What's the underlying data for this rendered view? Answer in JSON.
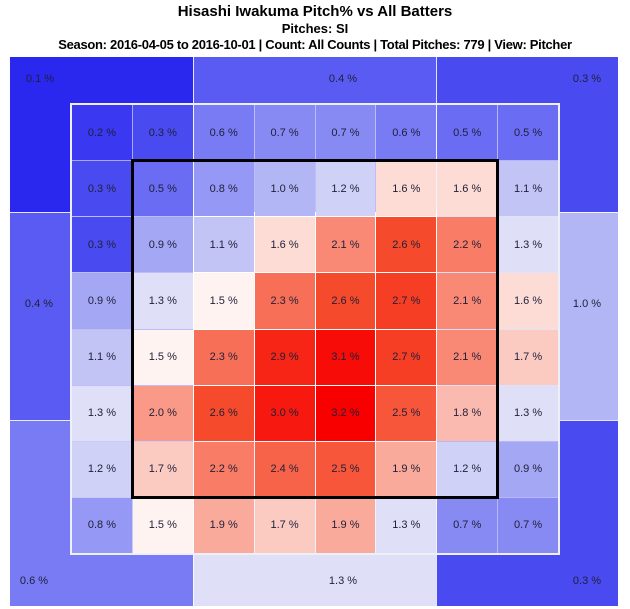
{
  "header": {
    "title": "Hisashi Iwakuma Pitch% vs All Batters",
    "subtitle": "Pitches: SI",
    "meta": "Season: 2016-04-05 to 2016-10-01 | Count: All Counts | Total Pitches: 779 | View: Pitcher"
  },
  "chart_data": {
    "type": "heatmap",
    "title": "Hisashi Iwakuma Pitch% vs All Batters",
    "player": "Hisashi Iwakuma",
    "metric": "Pitch%",
    "pitch_type": "SI",
    "season": "2016-04-05 to 2016-10-01",
    "count": "All Counts",
    "total_pitches": 779,
    "view": "Pitcher",
    "value_unit": "%",
    "label_suffix": " %",
    "inner_grid": {
      "rows": 8,
      "cols": 8,
      "values_top_to_bottom": [
        [
          0.2,
          0.3,
          0.6,
          0.7,
          0.7,
          0.6,
          0.5,
          0.5
        ],
        [
          0.3,
          0.5,
          0.8,
          1.0,
          1.2,
          1.6,
          1.6,
          1.1
        ],
        [
          0.3,
          0.9,
          1.1,
          1.6,
          2.1,
          2.6,
          2.2,
          1.3
        ],
        [
          0.9,
          1.3,
          1.5,
          2.3,
          2.6,
          2.7,
          2.1,
          1.6
        ],
        [
          1.1,
          1.5,
          2.3,
          2.9,
          3.1,
          2.7,
          2.1,
          1.7
        ],
        [
          1.3,
          2.0,
          2.6,
          3.0,
          3.2,
          2.5,
          1.8,
          1.3
        ],
        [
          1.2,
          1.7,
          2.2,
          2.4,
          2.5,
          1.9,
          1.2,
          0.9
        ],
        [
          0.8,
          1.5,
          1.9,
          1.7,
          1.9,
          1.3,
          0.7,
          0.7
        ]
      ]
    },
    "outer_zones": [
      {
        "position": "top-left",
        "value": 0.1
      },
      {
        "position": "top-center",
        "value": 0.4
      },
      {
        "position": "top-right",
        "value": 0.3
      },
      {
        "position": "middle-left",
        "value": 0.4
      },
      {
        "position": "middle-right",
        "value": 1.0
      },
      {
        "position": "bottom-left",
        "value": 0.6
      },
      {
        "position": "bottom-center",
        "value": 1.3
      },
      {
        "position": "bottom-right",
        "value": 0.3
      }
    ],
    "strike_zone_outline": true,
    "colors": {
      "strike_zone_border": "#000000",
      "cell_text": "#1f1f38",
      "grid_line": "#ffffff",
      "colormap_type": "blue-white-red",
      "colormap_stops": [
        [
          0.0,
          26,
          22,
          238
        ],
        [
          0.5,
          106,
          108,
          243
        ],
        [
          1.0,
          178,
          182,
          244
        ],
        [
          1.3,
          223,
          223,
          247
        ],
        [
          1.45,
          255,
          255,
          255
        ],
        [
          1.6,
          252,
          220,
          213
        ],
        [
          2.1,
          249,
          136,
          117
        ],
        [
          2.6,
          246,
          74,
          44
        ],
        [
          3.2,
          248,
          0,
          0
        ]
      ]
    }
  }
}
